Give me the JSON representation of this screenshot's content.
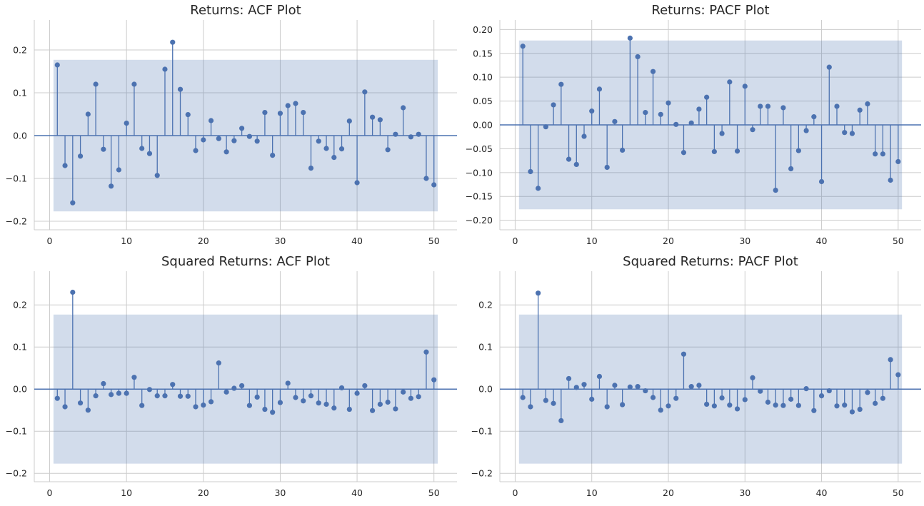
{
  "colors": {
    "series": "#4c72b0",
    "band": "#4c72b0",
    "grid": "#cccccc",
    "text": "#262626"
  },
  "chart_data": [
    {
      "type": "stem",
      "title": "Returns: ACF Plot",
      "xlim": [
        -2,
        53
      ],
      "ylim": [
        -0.22,
        0.27
      ],
      "xticks": [
        0,
        10,
        20,
        30,
        40,
        50
      ],
      "yticks": [
        -0.2,
        -0.1,
        0.0,
        0.1,
        0.2
      ],
      "ytick_labels": [
        "−0.2",
        "−0.1",
        "0.0",
        "0.1",
        "0.2"
      ],
      "confidence_band": [
        -0.177,
        0.177
      ],
      "grid": true,
      "lags": [
        1,
        2,
        3,
        4,
        5,
        6,
        7,
        8,
        9,
        10,
        11,
        12,
        13,
        14,
        15,
        16,
        17,
        18,
        19,
        20,
        21,
        22,
        23,
        24,
        25,
        26,
        27,
        28,
        29,
        30,
        31,
        32,
        33,
        34,
        35,
        36,
        37,
        38,
        39,
        40,
        41,
        42,
        43,
        44,
        45,
        46,
        47,
        48,
        49,
        50
      ],
      "values": [
        0.165,
        -0.07,
        -0.157,
        -0.048,
        0.05,
        0.12,
        -0.032,
        -0.118,
        -0.08,
        0.029,
        0.12,
        -0.03,
        -0.042,
        -0.093,
        0.155,
        0.218,
        0.108,
        0.049,
        -0.035,
        -0.01,
        0.035,
        -0.007,
        -0.038,
        -0.012,
        0.017,
        -0.002,
        -0.013,
        0.054,
        -0.046,
        0.052,
        0.07,
        0.075,
        0.054,
        -0.076,
        -0.013,
        -0.03,
        -0.051,
        -0.031,
        0.034,
        -0.11,
        0.102,
        0.043,
        0.037,
        -0.033,
        0.003,
        0.065,
        -0.003,
        0.003,
        -0.1,
        -0.115
      ]
    },
    {
      "type": "stem",
      "title": "Returns: PACF Plot",
      "xlim": [
        -2,
        53
      ],
      "ylim": [
        -0.22,
        0.22
      ],
      "xticks": [
        0,
        10,
        20,
        30,
        40,
        50
      ],
      "yticks": [
        -0.2,
        -0.15,
        -0.1,
        -0.05,
        0.0,
        0.05,
        0.1,
        0.15,
        0.2
      ],
      "ytick_labels": [
        "−0.20",
        "−0.15",
        "−0.10",
        "−0.05",
        "0.00",
        "0.05",
        "0.10",
        "0.15",
        "0.20"
      ],
      "confidence_band": [
        -0.177,
        0.177
      ],
      "grid": true,
      "lags": [
        1,
        2,
        3,
        4,
        5,
        6,
        7,
        8,
        9,
        10,
        11,
        12,
        13,
        14,
        15,
        16,
        17,
        18,
        19,
        20,
        21,
        22,
        23,
        24,
        25,
        26,
        27,
        28,
        29,
        30,
        31,
        32,
        33,
        34,
        35,
        36,
        37,
        38,
        39,
        40,
        41,
        42,
        43,
        44,
        45,
        46,
        47,
        48,
        49,
        50
      ],
      "values": [
        0.165,
        -0.098,
        -0.133,
        -0.004,
        0.042,
        0.085,
        -0.072,
        -0.083,
        -0.024,
        0.029,
        0.075,
        -0.089,
        0.007,
        -0.053,
        0.182,
        0.143,
        0.026,
        0.112,
        0.022,
        0.046,
        0.001,
        -0.058,
        0.004,
        0.033,
        0.058,
        -0.056,
        -0.018,
        0.09,
        -0.055,
        0.081,
        -0.01,
        0.039,
        0.039,
        -0.137,
        0.036,
        -0.092,
        -0.054,
        -0.012,
        0.017,
        -0.119,
        0.121,
        0.039,
        -0.016,
        -0.018,
        0.031,
        0.044,
        -0.061,
        -0.061,
        -0.116,
        -0.077
      ]
    },
    {
      "type": "stem",
      "title": "Squared Returns: ACF Plot",
      "xlim": [
        -2,
        53
      ],
      "ylim": [
        -0.22,
        0.28
      ],
      "xticks": [
        0,
        10,
        20,
        30,
        40,
        50
      ],
      "yticks": [
        -0.2,
        -0.1,
        0.0,
        0.1,
        0.2
      ],
      "ytick_labels": [
        "−0.2",
        "−0.1",
        "0.0",
        "0.1",
        "0.2"
      ],
      "confidence_band": [
        -0.177,
        0.177
      ],
      "grid": true,
      "lags": [
        1,
        2,
        3,
        4,
        5,
        6,
        7,
        8,
        9,
        10,
        11,
        12,
        13,
        14,
        15,
        16,
        17,
        18,
        19,
        20,
        21,
        22,
        23,
        24,
        25,
        26,
        27,
        28,
        29,
        30,
        31,
        32,
        33,
        34,
        35,
        36,
        37,
        38,
        39,
        40,
        41,
        42,
        43,
        44,
        45,
        46,
        47,
        48,
        49,
        50
      ],
      "values": [
        -0.022,
        -0.042,
        0.23,
        -0.033,
        -0.05,
        -0.016,
        0.013,
        -0.013,
        -0.01,
        -0.01,
        0.028,
        -0.039,
        -0.001,
        -0.016,
        -0.016,
        0.011,
        -0.017,
        -0.017,
        -0.042,
        -0.038,
        -0.03,
        0.062,
        -0.007,
        0.002,
        0.008,
        -0.039,
        -0.019,
        -0.048,
        -0.055,
        -0.032,
        0.014,
        -0.02,
        -0.028,
        -0.016,
        -0.033,
        -0.036,
        -0.045,
        0.003,
        -0.048,
        -0.01,
        0.008,
        -0.051,
        -0.036,
        -0.031,
        -0.047,
        -0.007,
        -0.022,
        -0.018,
        0.088,
        0.022
      ]
    },
    {
      "type": "stem",
      "title": "Squared Returns: PACF Plot",
      "xlim": [
        -2,
        53
      ],
      "ylim": [
        -0.22,
        0.28
      ],
      "xticks": [
        0,
        10,
        20,
        30,
        40,
        50
      ],
      "yticks": [
        -0.2,
        -0.1,
        0.0,
        0.1,
        0.2
      ],
      "ytick_labels": [
        "−0.2",
        "−0.1",
        "0.0",
        "0.1",
        "0.2"
      ],
      "confidence_band": [
        -0.177,
        0.177
      ],
      "grid": true,
      "lags": [
        1,
        2,
        3,
        4,
        5,
        6,
        7,
        8,
        9,
        10,
        11,
        12,
        13,
        14,
        15,
        16,
        17,
        18,
        19,
        20,
        21,
        22,
        23,
        24,
        25,
        26,
        27,
        28,
        29,
        30,
        31,
        32,
        33,
        34,
        35,
        36,
        37,
        38,
        39,
        40,
        41,
        42,
        43,
        44,
        45,
        46,
        47,
        48,
        49,
        50
      ],
      "values": [
        -0.02,
        -0.042,
        0.228,
        -0.027,
        -0.034,
        -0.075,
        0.025,
        0.004,
        0.011,
        -0.024,
        0.03,
        -0.042,
        0.009,
        -0.037,
        0.005,
        0.006,
        -0.004,
        -0.02,
        -0.05,
        -0.04,
        -0.022,
        0.083,
        0.006,
        0.009,
        -0.036,
        -0.04,
        -0.021,
        -0.038,
        -0.047,
        -0.025,
        0.027,
        -0.005,
        -0.031,
        -0.038,
        -0.039,
        -0.024,
        -0.039,
        0.001,
        -0.051,
        -0.016,
        -0.004,
        -0.04,
        -0.038,
        -0.054,
        -0.048,
        -0.008,
        -0.034,
        -0.022,
        0.07,
        0.034
      ]
    }
  ]
}
